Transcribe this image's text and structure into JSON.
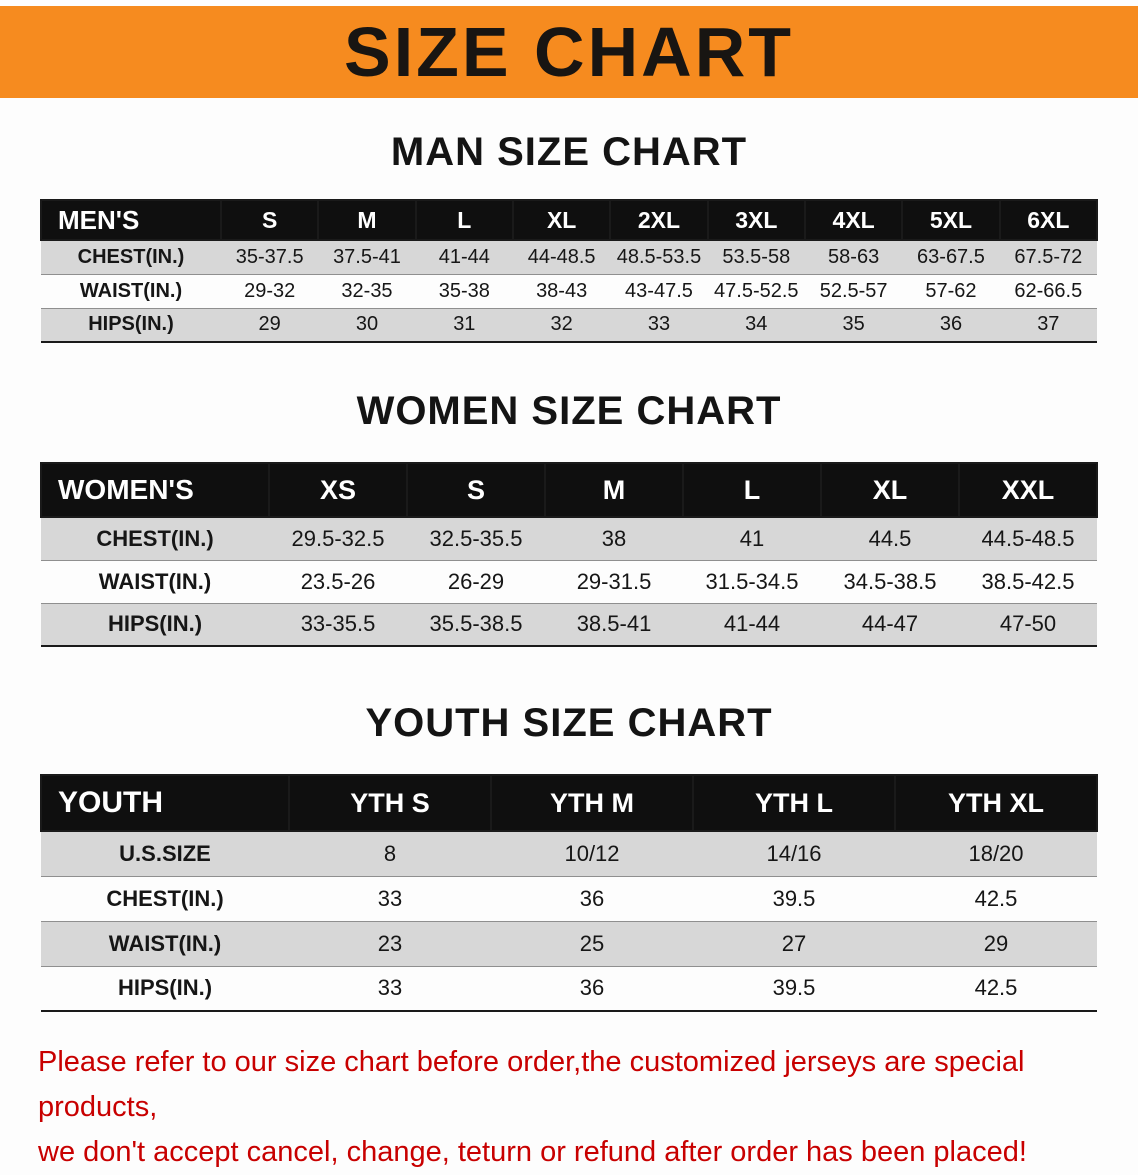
{
  "banner": {
    "title": "SIZE CHART"
  },
  "colors": {
    "banner_bg": "#f68b1f",
    "header_bg": "#0f0f0f",
    "stripe": "#d7d7d7",
    "note_red": "#c80000"
  },
  "men": {
    "heading": "MAN SIZE CHART",
    "header": [
      "MEN'S",
      "S",
      "M",
      "L",
      "XL",
      "2XL",
      "3XL",
      "4XL",
      "5XL",
      "6XL"
    ],
    "rows": [
      [
        "CHEST(IN.)",
        "35-37.5",
        "37.5-41",
        "41-44",
        "44-48.5",
        "48.5-53.5",
        "53.5-58",
        "58-63",
        "63-67.5",
        "67.5-72"
      ],
      [
        "WAIST(IN.)",
        "29-32",
        "32-35",
        "35-38",
        "38-43",
        "43-47.5",
        "47.5-52.5",
        "52.5-57",
        "57-62",
        "62-66.5"
      ],
      [
        "HIPS(IN.)",
        "29",
        "30",
        "31",
        "32",
        "33",
        "34",
        "35",
        "36",
        "37"
      ]
    ]
  },
  "women": {
    "heading": "WOMEN SIZE CHART",
    "header": [
      "WOMEN'S",
      "XS",
      "S",
      "M",
      "L",
      "XL",
      "XXL"
    ],
    "rows": [
      [
        "CHEST(IN.)",
        "29.5-32.5",
        "32.5-35.5",
        "38",
        "41",
        "44.5",
        "44.5-48.5"
      ],
      [
        "WAIST(IN.)",
        "23.5-26",
        "26-29",
        "29-31.5",
        "31.5-34.5",
        "34.5-38.5",
        "38.5-42.5"
      ],
      [
        "HIPS(IN.)",
        "33-35.5",
        "35.5-38.5",
        "38.5-41",
        "41-44",
        "44-47",
        "47-50"
      ]
    ]
  },
  "youth": {
    "heading": "YOUTH SIZE CHART",
    "header": [
      "YOUTH",
      "YTH S",
      "YTH M",
      "YTH L",
      "YTH XL"
    ],
    "rows": [
      [
        "U.S.SIZE",
        "8",
        "10/12",
        "14/16",
        "18/20"
      ],
      [
        "CHEST(IN.)",
        "33",
        "36",
        "39.5",
        "42.5"
      ],
      [
        "WAIST(IN.)",
        "23",
        "25",
        "27",
        "29"
      ],
      [
        "HIPS(IN.)",
        "33",
        "36",
        "39.5",
        "42.5"
      ]
    ]
  },
  "note": {
    "line1": "Please refer to our size chart before order,the customized jerseys are special products,",
    "line2": "we don't accept cancel, change, teturn or refund after order has been placed!"
  }
}
